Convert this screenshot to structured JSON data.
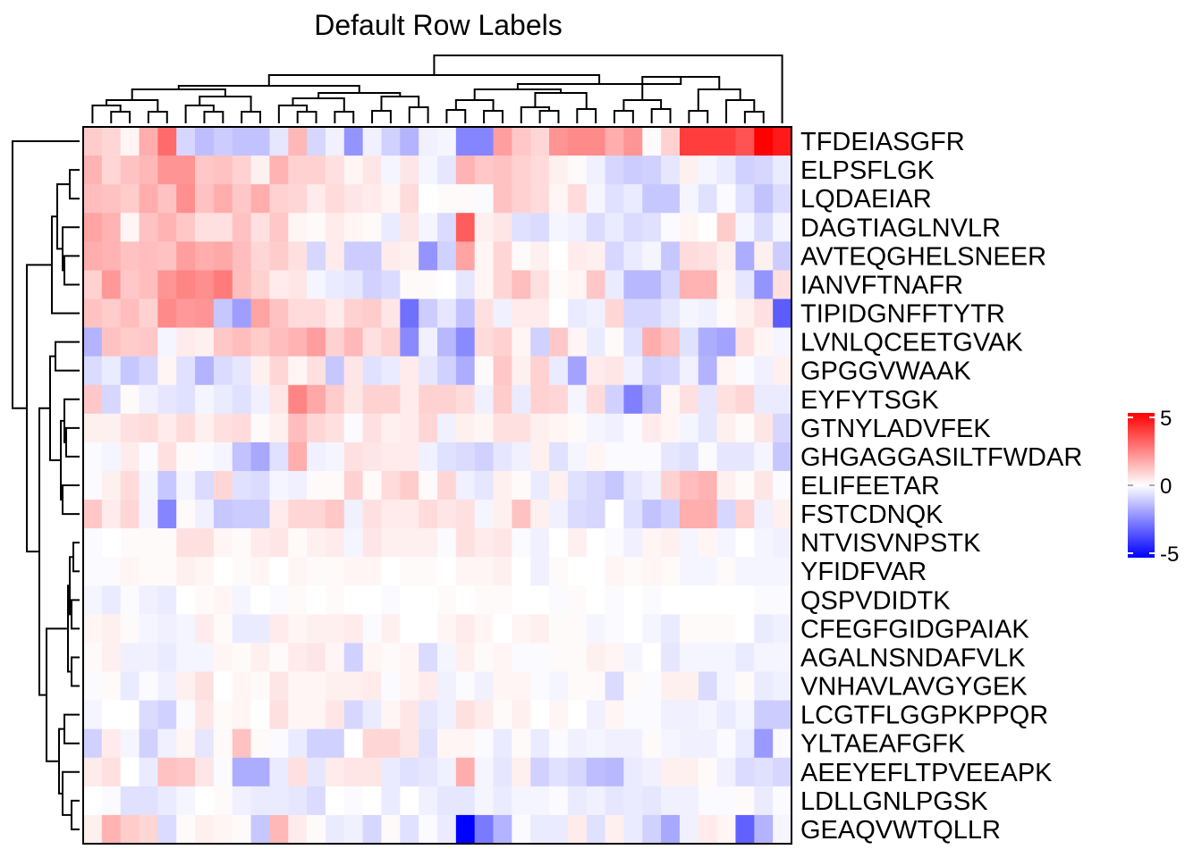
{
  "chart_data": {
    "type": "heatmap",
    "title": "Default Row Labels",
    "rows": [
      "TFDEIASGFR",
      "ELPSFLGK",
      "LQDAEIAR",
      "DAGTIAGLNVLR",
      "AVTEQGHELSNEER",
      "IANVFTNAFR",
      "TIPIDGNFFTYTR",
      "LVNLQCEETGVAK",
      "GPGGVWAAK",
      "EYFYTSGK",
      "GTNYLADVFEK",
      "GHGAGGASILTFWDAR",
      "ELIFEETAR",
      "FSTCDNQK",
      "NTVISVNPSTK",
      "YFIDFVAR",
      "QSPVDIDTK",
      "CFEGFGIDGPAIAK",
      "AGALNSNDAFVLK",
      "VNHAVLAVGYGEK",
      "LCGTFLGGPKPPQR",
      "YLTAEAFGFK",
      "AEEYEFLTPVEEAPK",
      "LDLLGNLPGSK",
      "GEAQVWTQLLR"
    ],
    "n_cols": 38,
    "values": [
      [
        1.0,
        0.8,
        0.2,
        1.6,
        2.9,
        -0.8,
        -1.3,
        -1.0,
        -1.2,
        -1.2,
        -0.5,
        1.4,
        -0.8,
        -0.3,
        -2.1,
        -0.3,
        -0.9,
        -1.5,
        -0.3,
        -0.2,
        -2.4,
        -2.4,
        1.9,
        1.1,
        0.8,
        2.1,
        2.3,
        2.3,
        1.6,
        2.1,
        0.1,
        0.9,
        3.8,
        3.8,
        3.8,
        3.4,
        5.0,
        4.5
      ],
      [
        1.5,
        0.8,
        1.2,
        1.4,
        2.1,
        2.1,
        1.1,
        1.2,
        0.9,
        0.3,
        1.5,
        0.9,
        0.9,
        0.6,
        0.2,
        0.5,
        -0.2,
        0.5,
        -0.2,
        -0.5,
        1.5,
        1.1,
        1.2,
        0.9,
        0.7,
        0.3,
        0.1,
        -0.3,
        -0.8,
        -1.0,
        -0.9,
        -0.5,
        0.3,
        -0.2,
        -0.4,
        -0.9,
        -0.8,
        -0.4
      ],
      [
        1.3,
        1.2,
        1.0,
        1.6,
        1.2,
        2.2,
        1.2,
        1.6,
        1.1,
        1.6,
        0.9,
        0.8,
        0.4,
        0.7,
        0.5,
        0.4,
        0.2,
        0.7,
        0.0,
        0.1,
        0.1,
        -0.1,
        1.2,
        0.9,
        0.7,
        0.2,
        0.7,
        -0.2,
        -0.6,
        -0.4,
        -1.1,
        -1.1,
        -0.2,
        -0.6,
        -0.1,
        -0.6,
        -1.2,
        -0.7
      ],
      [
        1.8,
        1.5,
        0.2,
        1.2,
        1.5,
        1.1,
        0.6,
        0.6,
        1.2,
        0.6,
        1.1,
        0.2,
        0.1,
        0.4,
        0.2,
        0.1,
        -0.4,
        0.5,
        -0.2,
        -0.7,
        3.2,
        0.3,
        0.5,
        -0.6,
        -0.7,
        -0.2,
        -0.3,
        -0.7,
        -0.4,
        -0.7,
        -0.6,
        -0.1,
        0.2,
        0.0,
        1.0,
        -0.2,
        -0.7,
        -0.2
      ],
      [
        1.6,
        1.5,
        1.2,
        1.3,
        1.2,
        1.9,
        1.6,
        1.7,
        1.3,
        0.8,
        1.0,
        0.6,
        -0.8,
        0.4,
        -1.0,
        -1.0,
        0.4,
        0.3,
        -2.1,
        -0.9,
        1.8,
        0.2,
        0.8,
        0.1,
        0.3,
        0.0,
        0.4,
        0.3,
        -0.8,
        -0.4,
        -0.2,
        -1.1,
        0.7,
        0.6,
        0.3,
        -1.6,
        0.3,
        -1.0
      ],
      [
        0.9,
        2.0,
        1.1,
        1.3,
        2.1,
        2.4,
        2.2,
        2.6,
        1.3,
        0.9,
        0.4,
        0.5,
        -0.2,
        -0.4,
        -0.5,
        -0.9,
        -0.7,
        0.1,
        0.1,
        0.0,
        -0.5,
        0.2,
        0.8,
        1.3,
        0.6,
        0.1,
        0.2,
        1.1,
        -0.4,
        -1.4,
        -1.4,
        -0.8,
        1.5,
        1.5,
        0.2,
        -0.5,
        -2.1,
        0.6
      ],
      [
        1.2,
        1.0,
        1.3,
        0.9,
        2.3,
        2.0,
        2.1,
        -1.1,
        -1.9,
        1.8,
        1.2,
        0.7,
        0.7,
        0.4,
        0.9,
        1.0,
        0.5,
        -2.8,
        -1.0,
        -0.5,
        -1.2,
        0.6,
        -0.3,
        0.4,
        0.4,
        0.0,
        -0.4,
        -0.3,
        0.8,
        -0.8,
        -0.8,
        -0.5,
        -0.2,
        -0.3,
        0.1,
        0.3,
        0.6,
        -3.2
      ],
      [
        -1.5,
        1.2,
        1.0,
        1.1,
        -0.2,
        0.4,
        0.3,
        1.1,
        1.3,
        1.0,
        1.3,
        1.5,
        1.9,
        0.9,
        1.4,
        0.6,
        0.9,
        -2.3,
        -0.3,
        -1.4,
        -2.3,
        0.7,
        0.9,
        0.2,
        -0.9,
        1.1,
        0.2,
        -0.4,
        0.1,
        -0.6,
        1.6,
        1.2,
        -0.6,
        -1.6,
        -1.8,
        0.6,
        0.2,
        -0.2
      ],
      [
        -0.7,
        -0.4,
        -1.1,
        -0.8,
        0.2,
        -0.6,
        -1.5,
        -0.7,
        -0.5,
        0.3,
        0.8,
        0.2,
        0.6,
        -1.1,
        0.5,
        -0.6,
        -0.4,
        0.4,
        -0.5,
        -0.9,
        -1.6,
        0.1,
        1.1,
        0.3,
        0.9,
        -0.4,
        -1.8,
        0.4,
        0.5,
        -0.3,
        -0.9,
        -0.8,
        -0.3,
        -1.5,
        0.2,
        -0.1,
        -0.3,
        0.3
      ],
      [
        1.1,
        -0.8,
        0.1,
        -0.3,
        -0.5,
        -0.6,
        -0.2,
        -0.4,
        -0.6,
        -0.3,
        0.5,
        2.4,
        1.7,
        1.0,
        0.5,
        0.9,
        0.9,
        0.4,
        0.9,
        0.9,
        0.7,
        -0.3,
        1.0,
        -0.4,
        0.9,
        0.8,
        -0.2,
        0.7,
        -0.9,
        -2.5,
        -1.4,
        0.2,
        0.6,
        -0.5,
        0.6,
        0.8,
        -0.4,
        -0.4
      ],
      [
        0.3,
        0.3,
        0.6,
        0.7,
        0.4,
        0.7,
        0.3,
        0.6,
        0.7,
        0.1,
        0.3,
        1.3,
        0.8,
        0.6,
        -0.1,
        0.6,
        0.3,
        0.4,
        0.8,
        -0.3,
        0.3,
        0.2,
        0.6,
        0.6,
        0.3,
        0.2,
        0.1,
        -0.2,
        -0.3,
        -0.1,
        0.4,
        0.2,
        -0.2,
        -0.5,
        0.3,
        0.1,
        0.5,
        -0.8
      ],
      [
        -0.1,
        -0.2,
        0.4,
        -0.1,
        0.6,
        0.1,
        -0.1,
        -0.2,
        -1.2,
        -1.7,
        -0.6,
        1.6,
        -0.3,
        -0.2,
        0.6,
        0.5,
        0.4,
        0.4,
        -0.3,
        -0.6,
        -0.7,
        -0.9,
        -0.5,
        -0.3,
        0.3,
        -0.6,
        -0.2,
        0.2,
        -0.1,
        -0.1,
        -0.1,
        -0.5,
        -0.6,
        -0.1,
        -0.5,
        -0.5,
        -0.2,
        -1.1
      ],
      [
        -0.1,
        0.3,
        0.7,
        -0.2,
        -1.1,
        -0.2,
        -0.7,
        0.8,
        -0.6,
        -0.7,
        -0.2,
        -0.3,
        0.1,
        0.1,
        0.9,
        0.1,
        0.7,
        1.0,
        0.1,
        0.8,
        -0.3,
        -0.5,
        0.3,
        0.1,
        -0.4,
        0.3,
        -0.6,
        -0.8,
        -1.1,
        -0.5,
        -0.3,
        0.9,
        1.3,
        1.5,
        0.3,
        0.1,
        0.5,
        -0.1
      ],
      [
        1.1,
        0.4,
        0.8,
        -0.2,
        -2.4,
        0.1,
        -0.3,
        -1.1,
        -1.0,
        -1.0,
        0.4,
        0.8,
        0.8,
        1.1,
        -0.3,
        0.6,
        0.4,
        0.4,
        0.7,
        0.5,
        0.6,
        -0.2,
        0.3,
        1.2,
        0.3,
        -0.3,
        -0.7,
        -0.8,
        0.0,
        -0.6,
        -1.2,
        -0.9,
        1.6,
        1.6,
        -0.8,
        0.9,
        -0.3,
        0.3
      ],
      [
        -0.1,
        0.0,
        0.1,
        0.1,
        0.1,
        0.6,
        0.6,
        0.2,
        0.1,
        0.4,
        0.5,
        0.1,
        0.3,
        0.4,
        -0.2,
        0.5,
        0.3,
        0.3,
        0.3,
        -0.1,
        0.6,
        0.4,
        0.5,
        -0.1,
        -0.3,
        0.0,
        0.3,
        0.0,
        -0.1,
        -0.3,
        0.2,
        0.3,
        -0.2,
        0.2,
        -0.2,
        0.0,
        -0.2,
        -0.3
      ],
      [
        -0.1,
        -0.1,
        0.2,
        0.1,
        0.1,
        0.3,
        0.2,
        0.0,
        0.1,
        0.2,
        0.0,
        0.2,
        0.1,
        0.1,
        0.2,
        0.2,
        0.0,
        0.1,
        0.1,
        0.0,
        0.2,
        0.2,
        0.3,
        0.0,
        -0.3,
        0.1,
        0.0,
        0.0,
        0.2,
        0.1,
        0.2,
        0.1,
        -0.2,
        -0.2,
        0.1,
        -0.2,
        -0.2,
        -0.2
      ],
      [
        -0.2,
        -0.4,
        -0.1,
        -0.3,
        -0.4,
        0.0,
        0.1,
        0.2,
        -0.2,
        0.0,
        -0.1,
        0.1,
        0.0,
        0.1,
        0.0,
        0.0,
        -0.1,
        0.0,
        0.0,
        0.1,
        0.0,
        0.1,
        0.1,
        0.0,
        0.0,
        -0.1,
        0.1,
        0.0,
        -0.1,
        0.0,
        -0.1,
        0.0,
        0.0,
        0.0,
        0.0,
        0.0,
        -0.1,
        -0.1
      ],
      [
        0.2,
        0.3,
        0.1,
        -0.2,
        -0.3,
        -0.2,
        0.4,
        0.1,
        -0.4,
        -0.4,
        0.4,
        0.2,
        0.3,
        0.3,
        0.4,
        -0.1,
        0.3,
        0.0,
        0.0,
        0.2,
        0.4,
        0.2,
        0.0,
        0.2,
        0.3,
        0.1,
        0.1,
        -0.2,
        -0.1,
        0.0,
        -0.2,
        -0.4,
        0.1,
        0.1,
        0.1,
        0.0,
        -0.4,
        -0.3
      ],
      [
        0.1,
        0.3,
        -0.3,
        -0.3,
        -0.4,
        -0.2,
        -0.2,
        0.2,
        0.1,
        0.3,
        0.1,
        0.4,
        0.5,
        0.2,
        -0.9,
        0.2,
        0.1,
        0.2,
        -0.7,
        -0.2,
        0.3,
        0.1,
        0.2,
        -0.1,
        -0.1,
        0.1,
        0.1,
        0.3,
        0.2,
        -0.2,
        0.0,
        -0.5,
        -0.2,
        -0.2,
        -0.2,
        -0.4,
        -0.2,
        -0.2
      ],
      [
        -0.1,
        0.1,
        -0.4,
        -0.1,
        -0.3,
        0.3,
        0.6,
        0.0,
        0.2,
        0.1,
        0.5,
        0.2,
        0.2,
        0.3,
        0.3,
        0.4,
        -0.1,
        0.2,
        0.4,
        -0.3,
        -0.1,
        -0.3,
        0.2,
        0.2,
        -0.1,
        -0.2,
        0.1,
        0.1,
        -0.7,
        0.1,
        -0.1,
        0.3,
        0.3,
        -0.7,
        -0.2,
        0.1,
        -0.4,
        -0.3
      ],
      [
        -0.2,
        0.0,
        0.0,
        -0.7,
        -0.9,
        -0.1,
        0.5,
        0.1,
        0.2,
        0.0,
        0.6,
        0.2,
        0.2,
        0.5,
        -0.8,
        -0.4,
        0.2,
        0.5,
        -0.5,
        -0.3,
        0.6,
        0.4,
        0.1,
        0.3,
        0.0,
        0.2,
        0.0,
        -0.3,
        0.2,
        -0.1,
        -0.1,
        -0.3,
        -0.3,
        -0.2,
        -0.4,
        -0.2,
        -1.0,
        -1.0
      ],
      [
        -0.9,
        0.4,
        -0.2,
        -0.9,
        -0.3,
        0.2,
        -0.5,
        0.1,
        1.2,
        0.1,
        -0.1,
        -0.4,
        -0.9,
        -0.9,
        0.0,
        0.8,
        0.8,
        0.5,
        -0.6,
        0.2,
        0.2,
        -0.1,
        -0.4,
        0.1,
        -0.4,
        -0.1,
        -0.3,
        -0.2,
        -0.3,
        -0.3,
        0.1,
        -0.2,
        -0.3,
        -0.3,
        -0.1,
        -0.4,
        -2.0,
        -0.1
      ],
      [
        0.4,
        0.6,
        0.0,
        -0.4,
        1.2,
        1.1,
        0.5,
        -0.1,
        -1.6,
        -1.6,
        -0.4,
        0.6,
        -0.5,
        0.4,
        0.5,
        0.5,
        -0.4,
        -0.6,
        -0.5,
        -0.3,
        1.6,
        -0.2,
        -0.5,
        0.3,
        -0.9,
        -0.6,
        -0.8,
        -1.3,
        -1.4,
        -0.4,
        -0.3,
        0.3,
        0.3,
        0.1,
        -0.3,
        -0.7,
        -0.6,
        -0.8
      ],
      [
        0.0,
        -0.1,
        -0.6,
        -0.6,
        -0.4,
        -0.2,
        0.0,
        0.1,
        -0.3,
        -0.4,
        -0.4,
        -0.5,
        -0.7,
        0.0,
        -0.1,
        0.0,
        -0.4,
        0.0,
        -0.3,
        -0.5,
        -0.5,
        -0.2,
        -0.4,
        -0.2,
        -0.2,
        -0.1,
        -0.4,
        -0.3,
        -0.5,
        -0.4,
        -0.5,
        -0.3,
        -0.3,
        -0.1,
        -0.1,
        0.1,
        -0.4,
        -0.1
      ],
      [
        0.3,
        1.5,
        1.0,
        0.8,
        -0.7,
        0.1,
        0.3,
        0.2,
        0.1,
        -1.1,
        1.4,
        0.4,
        0.1,
        -0.4,
        -0.3,
        -0.8,
        0.1,
        -0.6,
        -0.1,
        -0.4,
        -5.0,
        -2.6,
        -1.5,
        -0.1,
        -0.4,
        -0.4,
        0.4,
        -0.6,
        0.3,
        -0.4,
        -0.9,
        -1.7,
        -0.3,
        0.4,
        0.2,
        -3.1,
        -1.5,
        -0.2
      ]
    ],
    "color_scale": {
      "low": "#0000FF",
      "mid": "#FFFFFF",
      "high": "#FF0000",
      "min": -5,
      "max": 5
    },
    "legend": {
      "ticks": [
        "5",
        "0",
        "-5"
      ]
    }
  },
  "colors": {
    "border": "#000000",
    "dendrogram": "#000000"
  }
}
